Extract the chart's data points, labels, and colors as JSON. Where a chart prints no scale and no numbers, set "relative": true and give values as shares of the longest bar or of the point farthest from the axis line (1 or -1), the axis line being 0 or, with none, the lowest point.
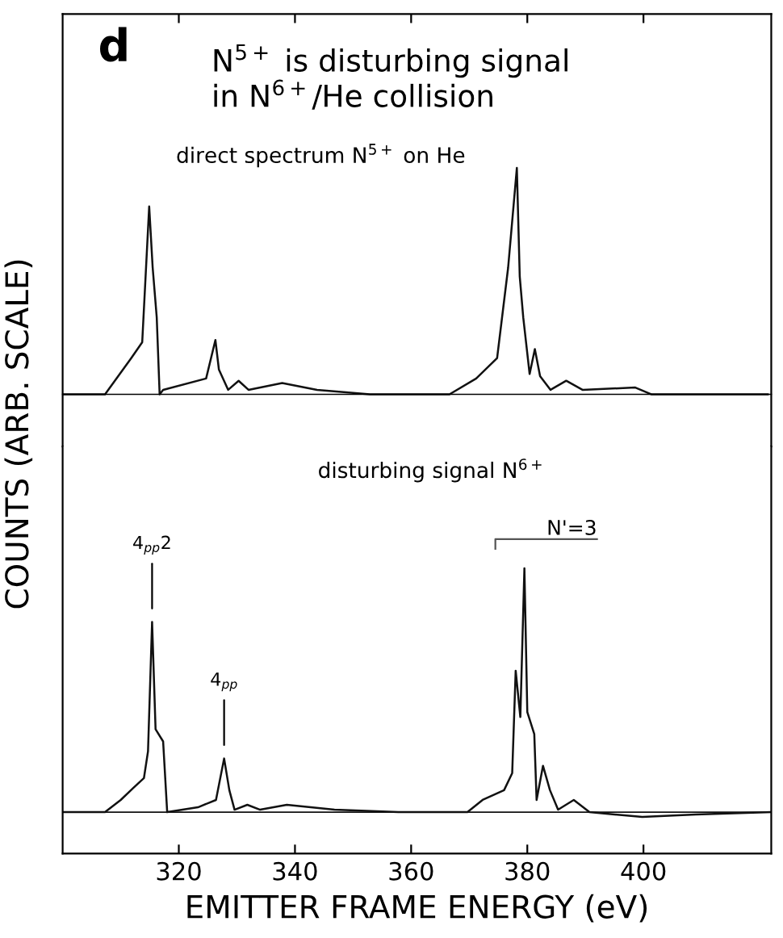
{
  "chart_data": [
    {
      "type": "line",
      "title": "N$^{5+}$ is disturbing signal\nin N$^{6+}$/He collision",
      "annotations": [
        "d",
        "direct spectrum N$^{5+}$ on He"
      ],
      "relative": true,
      "tick_labels": false,
      "color": "#111111",
      "xlim": [
        300,
        422
      ],
      "xticks": [
        {
          "value": 320,
          "label": null
        },
        {
          "value": 340,
          "label": null
        },
        {
          "value": 360,
          "label": null
        },
        {
          "value": 380,
          "label": null
        },
        {
          "value": 400,
          "label": null
        }
      ],
      "x": [
        300,
        307.3,
        311.8,
        313.7,
        314.9,
        315.5,
        316.2,
        316.7,
        317.3,
        324.7,
        326.3,
        326.9,
        328.5,
        330.3,
        332,
        337.8,
        343.8,
        348.4,
        352.9,
        366.6,
        371.2,
        374.8,
        376.7,
        378.2,
        378.7,
        379.3,
        380.4,
        381.3,
        382.2,
        384,
        386.7,
        389.5,
        398.6,
        401.4,
        421.4
      ],
      "values": [
        0,
        0,
        0.16,
        0.23,
        0.83,
        0.56,
        0.34,
        0,
        0.02,
        0.07,
        0.24,
        0.11,
        0.02,
        0.06,
        0.02,
        0.05,
        0.02,
        0.01,
        0,
        0,
        0.07,
        0.16,
        0.56,
        1.0,
        0.52,
        0.34,
        0.09,
        0.2,
        0.08,
        0.02,
        0.06,
        0.02,
        0.03,
        0,
        0
      ]
    },
    {
      "type": "line",
      "annotations": [
        "disturbing signal N$^{6+}$",
        {
          "text": "4$_{pp}$2",
          "x": 315.4,
          "y": 0.78
        },
        {
          "text": "4$_{pp}$",
          "x": 327.8,
          "y": 0.22
        },
        "N'=3"
      ],
      "relative": true,
      "tick_labels": "x",
      "color": "#111111",
      "xlabel": "EMITTER FRAME ENERGY (eV)",
      "ylabel": "COUNTS (ARB. SCALE)",
      "xlim": [
        300,
        422
      ],
      "xticks": [
        320,
        340,
        360,
        380,
        400
      ],
      "ref_lines": [
        {
          "axis": "y",
          "value": 0,
          "color": "#111111"
        }
      ],
      "x": [
        300,
        307.3,
        310,
        312.2,
        314,
        314.7,
        315.4,
        316,
        317.3,
        318,
        323.3,
        326.4,
        327.8,
        328.7,
        329.6,
        331.8,
        334,
        338.6,
        346.8,
        357.8,
        369.7,
        372.3,
        376,
        377.4,
        378,
        378.8,
        379.5,
        380,
        381.2,
        381.6,
        382.7,
        383.9,
        385.3,
        388,
        390.7,
        399.8,
        409,
        422
      ],
      "values": [
        0,
        0,
        0.05,
        0.1,
        0.14,
        0.25,
        0.78,
        0.34,
        0.29,
        0,
        0.02,
        0.05,
        0.22,
        0.09,
        0.01,
        0.03,
        0.01,
        0.03,
        0.01,
        0,
        0,
        0.05,
        0.09,
        0.16,
        0.58,
        0.39,
        1.0,
        0.41,
        0.32,
        0.05,
        0.19,
        0.09,
        0.01,
        0.05,
        0,
        -0.02,
        -0.01,
        0
      ]
    }
  ]
}
